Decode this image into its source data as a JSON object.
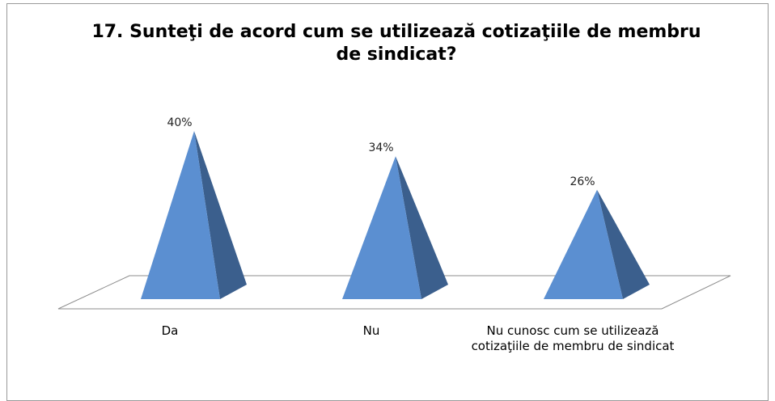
{
  "chart_data": {
    "type": "pyramid",
    "title": "17. Sunteţi de acord cum se utilizează cotizaţiile de membru de sindicat?",
    "categories": [
      "Da",
      "Nu",
      "Nu cunosc cum se utilizează cotizaţiile de membru de sindicat"
    ],
    "values": [
      40,
      34,
      26
    ],
    "value_labels": [
      "40%",
      "34%",
      "26%"
    ],
    "color": "#5b8fd1"
  }
}
